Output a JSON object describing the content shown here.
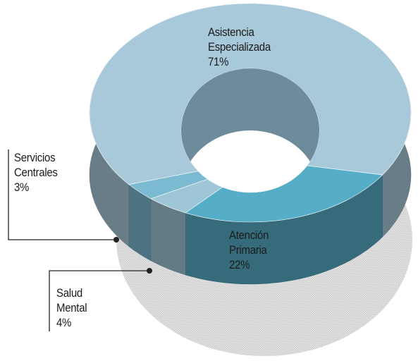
{
  "chart_data": {
    "type": "donut",
    "categories": [
      "Asistencia Especializada",
      "Atención Primaria",
      "Salud Mental",
      "Servicios Centrales"
    ],
    "values": [
      71,
      22,
      4,
      3
    ],
    "value_labels": [
      "71%",
      "22%",
      "4%",
      "3%"
    ],
    "colors": [
      "#a7c9d9",
      "#56adc7",
      "#9ec6d7",
      "#7cbad2"
    ]
  }
}
